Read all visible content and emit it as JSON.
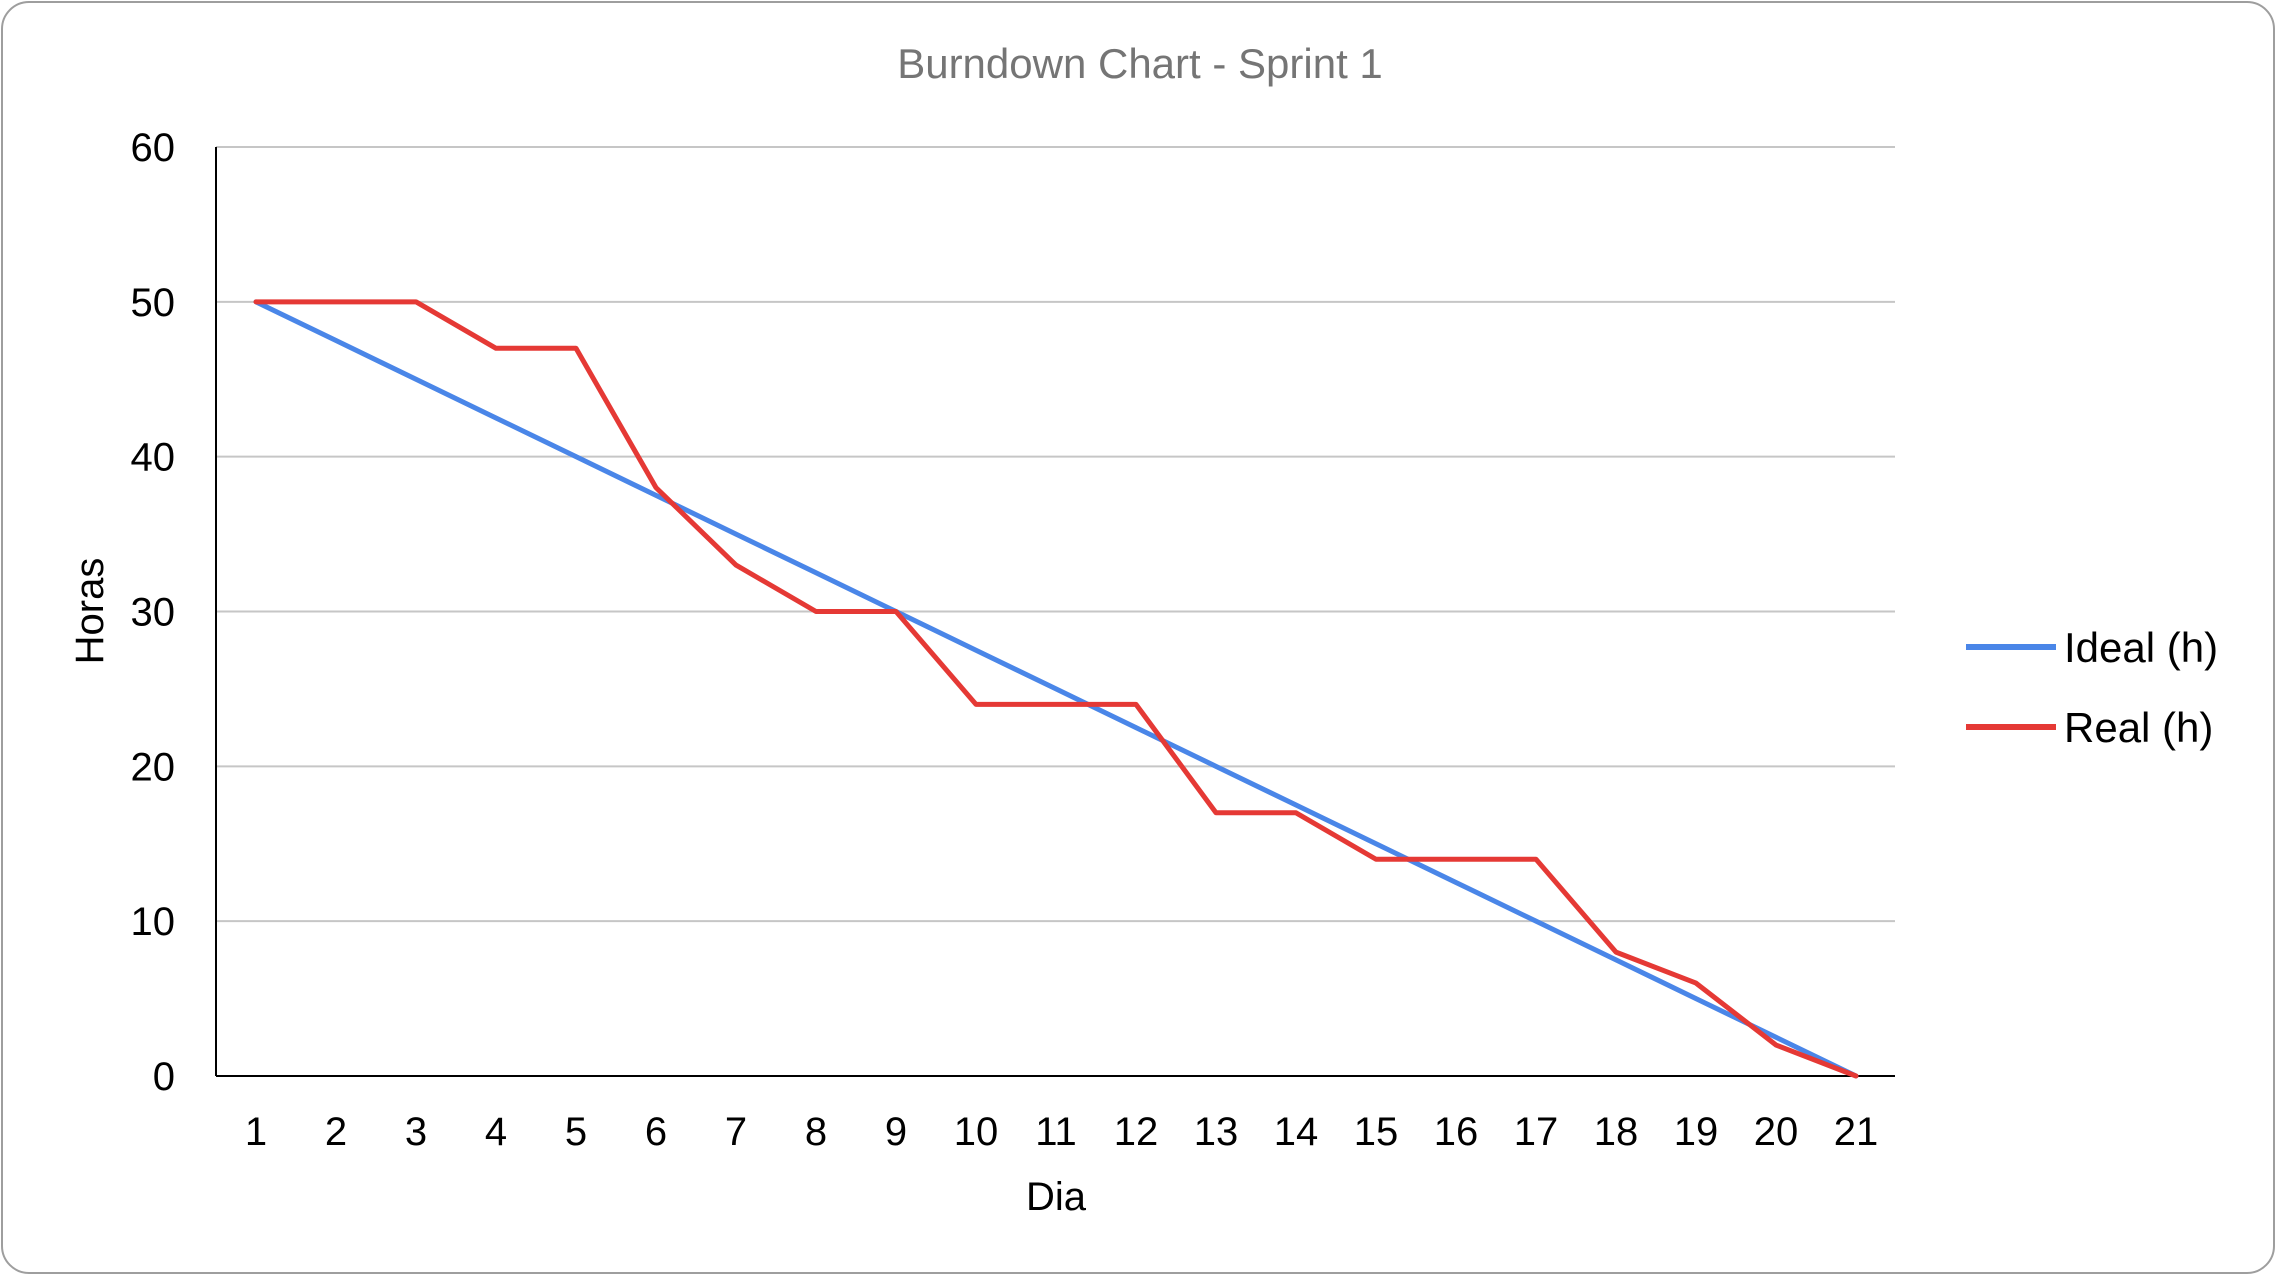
{
  "chart_data": {
    "type": "line",
    "title": "Burndown Chart - Sprint 1",
    "xlabel": "Dia",
    "ylabel": "Horas",
    "categories": [
      "1",
      "2",
      "3",
      "4",
      "5",
      "6",
      "7",
      "8",
      "9",
      "10",
      "11",
      "12",
      "13",
      "14",
      "15",
      "16",
      "17",
      "18",
      "19",
      "20",
      "21"
    ],
    "ylim": [
      0,
      60
    ],
    "yticks": [
      0,
      10,
      20,
      30,
      40,
      50,
      60
    ],
    "grid": true,
    "legend_position": "right",
    "series": [
      {
        "name": "Ideal (h)",
        "color": "#4a86e8",
        "values": [
          50,
          47.5,
          45,
          42.5,
          40,
          37.5,
          35,
          32.5,
          30,
          27.5,
          25,
          22.5,
          20,
          17.5,
          15,
          12.5,
          10,
          7.5,
          5,
          2.5,
          0
        ]
      },
      {
        "name": "Real (h)",
        "color": "#e53935",
        "values": [
          50,
          50,
          50,
          47,
          47,
          38,
          33,
          30,
          30,
          24,
          24,
          24,
          17,
          17,
          14,
          14,
          14,
          8,
          6,
          2,
          0
        ]
      }
    ]
  }
}
